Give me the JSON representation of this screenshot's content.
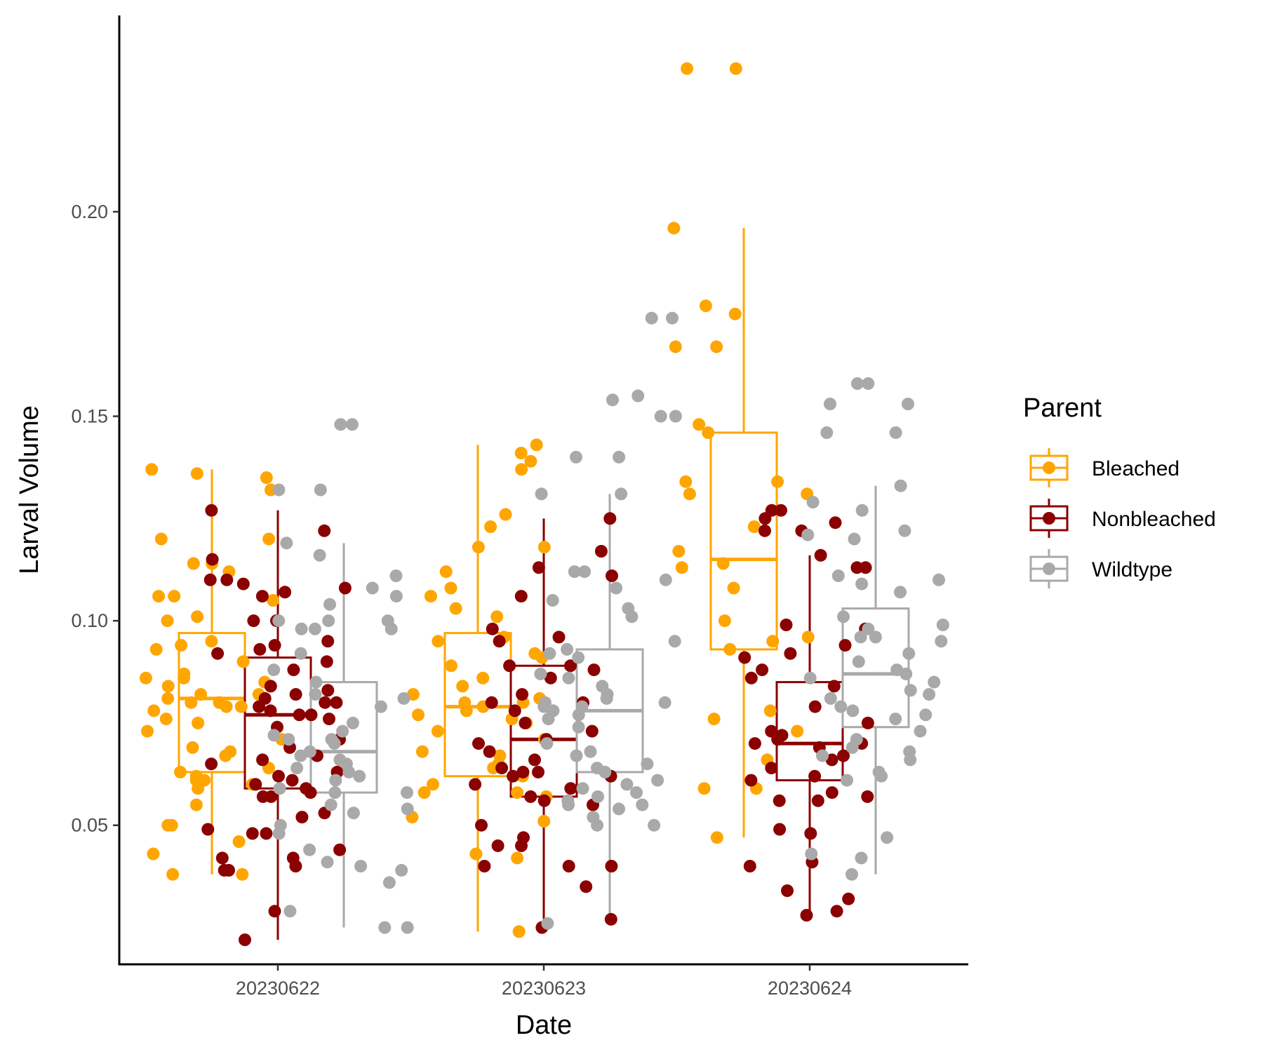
{
  "chart_data": {
    "type": "boxplot",
    "xlabel": "Date",
    "ylabel": "Larval Volume",
    "ylim": [
      0.016,
      0.248
    ],
    "yticks": [
      0.05,
      0.1,
      0.15,
      0.2
    ],
    "ytick_labels": [
      "0.05",
      "0.10",
      "0.15",
      "0.20"
    ],
    "categories": [
      "20230622",
      "20230623",
      "20230624"
    ],
    "grid": false,
    "legend": {
      "title": "Parent",
      "placement": "right"
    },
    "series": [
      {
        "name": "Bleached",
        "color": "#FFA500",
        "boxes": [
          {
            "min": 0.038,
            "q1": 0.063,
            "median": 0.081,
            "q3": 0.097,
            "max": 0.137
          },
          {
            "min": 0.024,
            "q1": 0.062,
            "median": 0.079,
            "q3": 0.097,
            "max": 0.143
          },
          {
            "min": 0.047,
            "q1": 0.093,
            "median": 0.115,
            "q3": 0.146,
            "max": 0.196
          }
        ],
        "points": [
          [
            0.135,
            0.132,
            0.137,
            0.136,
            0.12,
            0.12,
            0.114,
            0.114,
            0.112,
            0.106,
            0.106,
            0.105,
            0.101,
            0.1,
            0.095,
            0.094,
            0.093,
            0.09,
            0.087,
            0.086,
            0.086,
            0.085,
            0.084,
            0.082,
            0.082,
            0.081,
            0.08,
            0.08,
            0.079,
            0.079,
            0.078,
            0.076,
            0.075,
            0.073,
            0.071,
            0.069,
            0.068,
            0.067,
            0.064,
            0.063,
            0.062,
            0.061,
            0.061,
            0.06,
            0.059,
            0.055,
            0.05,
            0.05,
            0.046,
            0.043,
            0.038,
            0.038
          ],
          [
            0.141,
            0.143,
            0.139,
            0.137,
            0.126,
            0.123,
            0.118,
            0.118,
            0.112,
            0.108,
            0.106,
            0.103,
            0.101,
            0.096,
            0.095,
            0.092,
            0.091,
            0.089,
            0.086,
            0.084,
            0.082,
            0.081,
            0.08,
            0.08,
            0.079,
            0.078,
            0.077,
            0.076,
            0.075,
            0.073,
            0.071,
            0.068,
            0.067,
            0.065,
            0.064,
            0.062,
            0.06,
            0.058,
            0.058,
            0.057,
            0.052,
            0.051,
            0.043,
            0.042,
            0.024
          ],
          [
            0.235,
            0.235,
            0.196,
            0.177,
            0.175,
            0.167,
            0.167,
            0.148,
            0.146,
            0.134,
            0.134,
            0.131,
            0.131,
            0.123,
            0.117,
            0.114,
            0.113,
            0.108,
            0.1,
            0.096,
            0.095,
            0.093,
            0.078,
            0.076,
            0.073,
            0.066,
            0.059,
            0.059,
            0.047
          ]
        ]
      },
      {
        "name": "Nonbleached",
        "color": "#8B0000",
        "boxes": [
          {
            "min": 0.022,
            "q1": 0.059,
            "median": 0.077,
            "q3": 0.091,
            "max": 0.127
          },
          {
            "min": 0.026,
            "q1": 0.057,
            "median": 0.071,
            "q3": 0.089,
            "max": 0.125
          },
          {
            "min": 0.027,
            "q1": 0.061,
            "median": 0.07,
            "q3": 0.085,
            "max": 0.116
          }
        ],
        "points": [
          [
            0.127,
            0.122,
            0.115,
            0.11,
            0.11,
            0.109,
            0.108,
            0.107,
            0.106,
            0.1,
            0.1,
            0.095,
            0.094,
            0.093,
            0.092,
            0.09,
            0.088,
            0.084,
            0.083,
            0.082,
            0.081,
            0.08,
            0.08,
            0.079,
            0.078,
            0.077,
            0.077,
            0.076,
            0.074,
            0.071,
            0.069,
            0.067,
            0.066,
            0.065,
            0.063,
            0.062,
            0.061,
            0.06,
            0.059,
            0.058,
            0.057,
            0.057,
            0.053,
            0.052,
            0.049,
            0.048,
            0.048,
            0.044,
            0.042,
            0.042,
            0.04,
            0.039,
            0.039,
            0.029,
            0.022
          ],
          [
            0.125,
            0.117,
            0.113,
            0.111,
            0.106,
            0.098,
            0.096,
            0.095,
            0.089,
            0.089,
            0.088,
            0.086,
            0.082,
            0.08,
            0.08,
            0.078,
            0.075,
            0.073,
            0.071,
            0.07,
            0.068,
            0.066,
            0.064,
            0.063,
            0.063,
            0.062,
            0.062,
            0.06,
            0.059,
            0.057,
            0.056,
            0.055,
            0.05,
            0.047,
            0.045,
            0.045,
            0.04,
            0.04,
            0.04,
            0.035,
            0.027,
            0.025
          ],
          [
            0.127,
            0.127,
            0.125,
            0.124,
            0.122,
            0.122,
            0.116,
            0.113,
            0.113,
            0.099,
            0.098,
            0.094,
            0.092,
            0.091,
            0.088,
            0.086,
            0.084,
            0.079,
            0.075,
            0.073,
            0.072,
            0.071,
            0.07,
            0.07,
            0.069,
            0.067,
            0.066,
            0.064,
            0.062,
            0.061,
            0.058,
            0.057,
            0.056,
            0.056,
            0.049,
            0.048,
            0.041,
            0.04,
            0.034,
            0.032,
            0.029,
            0.028
          ]
        ]
      },
      {
        "name": "Wildtype",
        "color": "#A9A9A9",
        "boxes": [
          {
            "min": 0.025,
            "q1": 0.058,
            "median": 0.068,
            "q3": 0.085,
            "max": 0.119
          },
          {
            "min": 0.026,
            "q1": 0.063,
            "median": 0.078,
            "q3": 0.093,
            "max": 0.131
          },
          {
            "min": 0.038,
            "q1": 0.074,
            "median": 0.087,
            "q3": 0.103,
            "max": 0.133
          }
        ],
        "points": [
          [
            0.148,
            0.148,
            0.132,
            0.132,
            0.119,
            0.116,
            0.111,
            0.108,
            0.106,
            0.104,
            0.1,
            0.1,
            0.1,
            0.098,
            0.098,
            0.098,
            0.092,
            0.088,
            0.085,
            0.082,
            0.081,
            0.079,
            0.075,
            0.073,
            0.072,
            0.071,
            0.071,
            0.07,
            0.068,
            0.067,
            0.066,
            0.065,
            0.064,
            0.063,
            0.062,
            0.061,
            0.059,
            0.058,
            0.058,
            0.055,
            0.054,
            0.053,
            0.05,
            0.048,
            0.044,
            0.041,
            0.04,
            0.039,
            0.036,
            0.029,
            0.025,
            0.025
          ],
          [
            0.174,
            0.174,
            0.155,
            0.154,
            0.15,
            0.15,
            0.14,
            0.14,
            0.131,
            0.131,
            0.112,
            0.112,
            0.11,
            0.108,
            0.105,
            0.103,
            0.101,
            0.095,
            0.093,
            0.092,
            0.091,
            0.087,
            0.086,
            0.084,
            0.082,
            0.081,
            0.08,
            0.08,
            0.079,
            0.079,
            0.078,
            0.078,
            0.077,
            0.076,
            0.074,
            0.07,
            0.068,
            0.067,
            0.065,
            0.064,
            0.063,
            0.061,
            0.06,
            0.059,
            0.058,
            0.057,
            0.056,
            0.055,
            0.055,
            0.054,
            0.052,
            0.05,
            0.05,
            0.026
          ],
          [
            0.158,
            0.158,
            0.153,
            0.153,
            0.146,
            0.146,
            0.133,
            0.129,
            0.127,
            0.122,
            0.121,
            0.12,
            0.111,
            0.11,
            0.109,
            0.107,
            0.101,
            0.099,
            0.098,
            0.096,
            0.096,
            0.095,
            0.092,
            0.09,
            0.088,
            0.087,
            0.086,
            0.085,
            0.083,
            0.082,
            0.081,
            0.079,
            0.078,
            0.077,
            0.076,
            0.073,
            0.071,
            0.069,
            0.068,
            0.067,
            0.066,
            0.063,
            0.062,
            0.061,
            0.047,
            0.043,
            0.042,
            0.038
          ]
        ]
      }
    ]
  }
}
